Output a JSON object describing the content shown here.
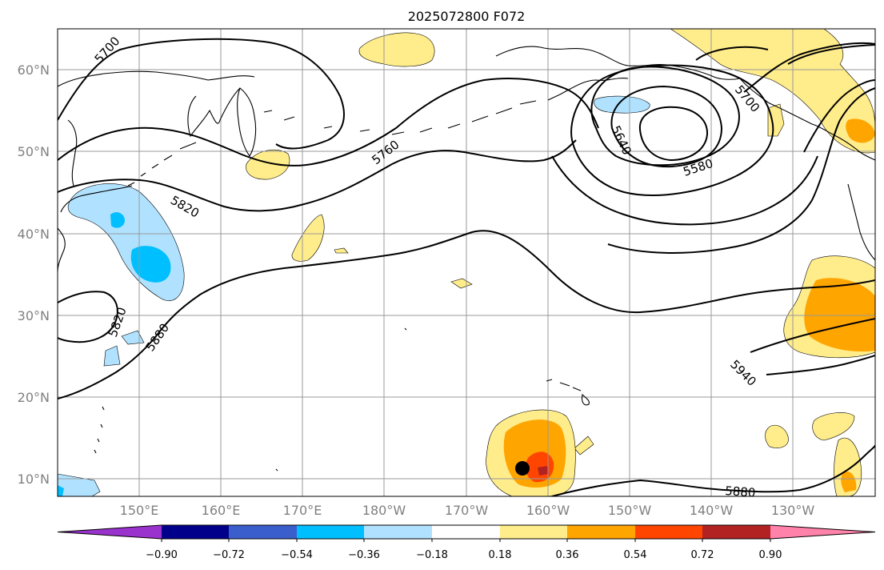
{
  "map": {
    "title": "2025072800 F072",
    "lon_labels": [
      "150°E",
      "160°E",
      "170°E",
      "180°W",
      "170°W",
      "160°W",
      "150°W",
      "140°W",
      "130°W"
    ],
    "lat_labels": [
      "60°N",
      "50°N",
      "40°N",
      "30°N",
      "20°N",
      "10°N"
    ],
    "contour_labels": [
      "5700",
      "5760",
      "5820",
      "5820",
      "5880",
      "5640",
      "5580",
      "5700",
      "5940",
      "5880"
    ],
    "colorbar": {
      "ticks": [
        "−0.90",
        "−0.72",
        "−0.54",
        "−0.36",
        "−0.18",
        "0.18",
        "0.36",
        "0.54",
        "0.72",
        "0.90"
      ],
      "colors": [
        "#9a32cd",
        "#00008b",
        "#3a5fcd",
        "#00bfff",
        "#b0e2ff",
        "#ffffff",
        "#ffec8b",
        "#ffa500",
        "#ff4500",
        "#b22222",
        "#ff82ab"
      ]
    },
    "marker": {
      "lon": -163.5,
      "lat": 11.5,
      "color": "#000000"
    }
  }
}
